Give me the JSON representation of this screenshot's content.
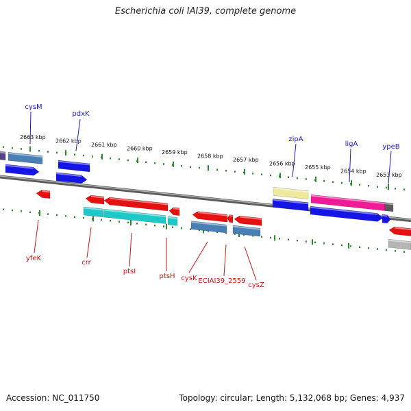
{
  "title": "Escherichia coli IAI39, complete genome",
  "footer": {
    "accession": "Accession: NC_011750",
    "info": "Topology: circular; Length: 5,132,068 bp; Genes: 4,937"
  },
  "colors": {
    "forward_label": "#1a1acc",
    "reverse_label": "#cc1111",
    "tick": "#2a8a2a",
    "backbone": "#808080",
    "blue_gene": "#1515e6",
    "red_gene": "#e61010",
    "cyan_gene": "#1fc8c8",
    "steel_gene": "#4a7fb5",
    "yellow_gene": "#efe9a0",
    "magenta_gene": "#ee1a96",
    "gray_gene": "#b5b5b5",
    "purple_gene": "#554488"
  },
  "kbp_labels": [
    "2663 kbp",
    "2662 kbp",
    "2661 kbp",
    "2660 kbp",
    "2659 kbp",
    "2658 kbp",
    "2657 kbp",
    "2656 kbp",
    "2655 kbp",
    "2654 kbp",
    "2653 kbp"
  ],
  "forward_genes": [
    "cysM",
    "pdxK",
    "zipA",
    "ligA",
    "ypeB"
  ],
  "reverse_genes": [
    "yfeK",
    "crr",
    "ptsI",
    "ptsH",
    "cysK",
    "ECIAI39_2559",
    "cysZ"
  ]
}
